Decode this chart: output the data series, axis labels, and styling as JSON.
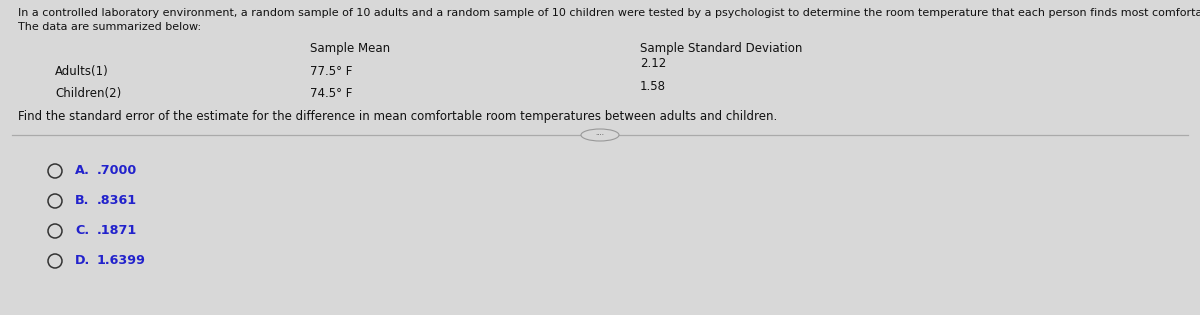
{
  "bg_color_top": "#d8d8d8",
  "bg_color_bottom": "#c0c0c0",
  "text_color": "#111111",
  "title_line1": "In a controlled laboratory environment, a random sample of 10 adults and a random sample of 10 children were tested by a psychologist to determine the room temperature that each person finds most comfortable.",
  "title_line2": "The data are summarized below:",
  "col_header_mean": "Sample Mean",
  "col_header_std": "Sample Standard Deviation",
  "row1_label": "Adults(1)",
  "row1_mean": "77.5° F",
  "row1_std": "2.12",
  "row2_label": "Children(2)",
  "row2_mean": "74.5° F",
  "row2_std": "1.58",
  "question": "Find the standard error of the estimate for the difference in mean comfortable room temperatures between adults and children.",
  "options": [
    {
      "label": "A.",
      "value": ".7000"
    },
    {
      "label": "B.",
      "value": ".8361"
    },
    {
      "label": "C.",
      "value": ".1871"
    },
    {
      "label": "D.",
      "value": "1.6399"
    }
  ],
  "option_circle_color": "#333333",
  "option_label_color": "#2222cc",
  "divider_color": "#aaaaaa",
  "fs_title": 8.0,
  "fs_table": 8.5,
  "fs_option": 9.2
}
